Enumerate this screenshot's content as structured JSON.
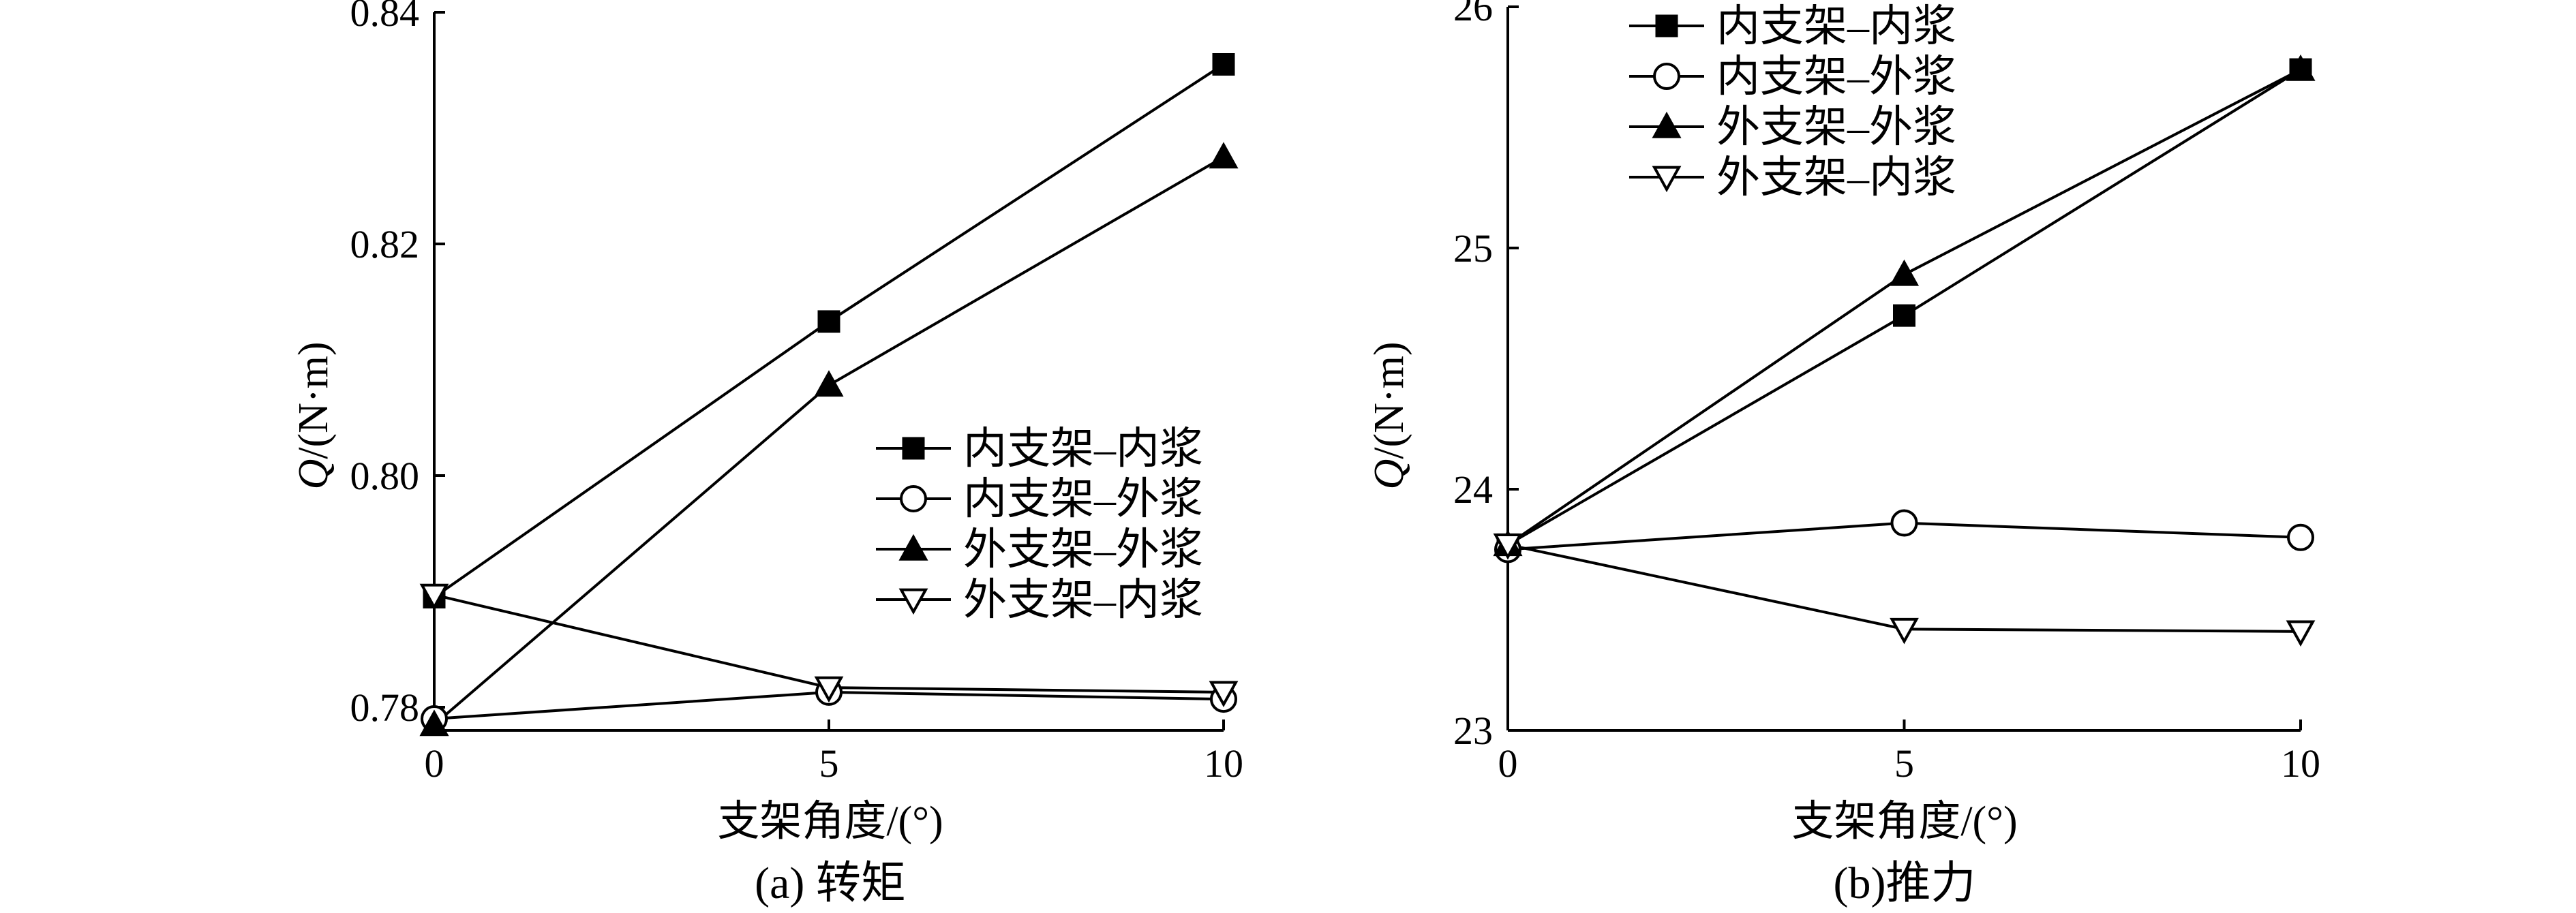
{
  "chart_data": [
    {
      "type": "line",
      "caption": "(a) 转矩",
      "xlabel": "支架角度/(°)",
      "ylabel_italic": "Q",
      "ylabel_rest": "/(N·m)",
      "xlim": [
        0,
        10
      ],
      "ylim": [
        0.778,
        0.84
      ],
      "x_ticks": [
        0,
        5,
        10
      ],
      "x_tick_labels": [
        "0",
        "5",
        "10"
      ],
      "y_ticks": [
        0.78,
        0.8,
        0.82,
        0.84
      ],
      "y_tick_labels": [
        "0.78",
        "0.80",
        "0.82",
        "0.84"
      ],
      "grid": false,
      "legend_position": "right-middle",
      "series": [
        {
          "name": "内支架–内浆",
          "marker": "square-filled",
          "x": [
            0,
            5,
            10
          ],
          "y": [
            0.7895,
            0.8133,
            0.8355
          ]
        },
        {
          "name": "内支架–外浆",
          "marker": "circle-open",
          "x": [
            0,
            5,
            10
          ],
          "y": [
            0.779,
            0.7813,
            0.7807
          ]
        },
        {
          "name": "外支架–外浆",
          "marker": "triangle-up-filled",
          "x": [
            0,
            5,
            10
          ],
          "y": [
            0.7785,
            0.8078,
            0.8275
          ]
        },
        {
          "name": "外支架–内浆",
          "marker": "triangle-down-open",
          "x": [
            0,
            5,
            10
          ],
          "y": [
            0.7897,
            0.7817,
            0.7813
          ]
        }
      ]
    },
    {
      "type": "line",
      "caption": "(b)推力",
      "xlabel": "支架角度/(°)",
      "ylabel_italic": "Q",
      "ylabel_rest": "/(N·m)",
      "xlim": [
        0,
        10
      ],
      "ylim": [
        23,
        26
      ],
      "x_ticks": [
        0,
        5,
        10
      ],
      "x_tick_labels": [
        "0",
        "5",
        "10"
      ],
      "y_ticks": [
        23,
        24,
        25,
        26
      ],
      "y_tick_labels": [
        "23",
        "24",
        "25",
        "26"
      ],
      "grid": false,
      "legend_position": "top-left",
      "series": [
        {
          "name": "内支架–内浆",
          "marker": "square-filled",
          "x": [
            0,
            5,
            10
          ],
          "y": [
            23.77,
            24.72,
            25.74
          ]
        },
        {
          "name": "内支架–外浆",
          "marker": "circle-open",
          "x": [
            0,
            5,
            10
          ],
          "y": [
            23.75,
            23.86,
            23.8
          ]
        },
        {
          "name": "外支架–外浆",
          "marker": "triangle-up-filled",
          "x": [
            0,
            5,
            10
          ],
          "y": [
            23.77,
            24.89,
            25.74
          ]
        },
        {
          "name": "外支架–内浆",
          "marker": "triangle-down-open",
          "x": [
            0,
            5,
            10
          ],
          "y": [
            23.77,
            23.42,
            23.41
          ]
        }
      ]
    }
  ]
}
